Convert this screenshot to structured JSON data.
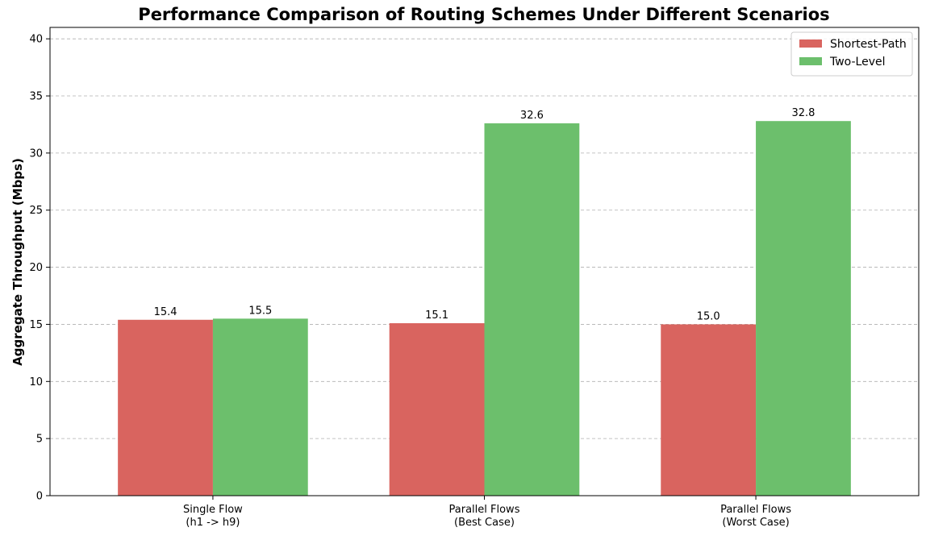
{
  "chart_data": {
    "type": "bar",
    "title": "Performance Comparison of Routing Schemes Under Different Scenarios",
    "xlabel": "",
    "ylabel": "Aggregate Throughput (Mbps)",
    "ylim": [
      0,
      41
    ],
    "yticks": [
      0,
      5,
      10,
      15,
      20,
      25,
      30,
      35,
      40
    ],
    "grid": "y-dashed",
    "legend_position": "top-right",
    "categories": [
      [
        "Single Flow",
        "(h1 -> h9)"
      ],
      [
        "Parallel Flows",
        "(Best Case)"
      ],
      [
        "Parallel Flows",
        "(Worst Case)"
      ]
    ],
    "series": [
      {
        "name": "Shortest-Path",
        "color": "#d9645f",
        "values": [
          15.4,
          15.1,
          15.0
        ],
        "labels": [
          "15.4",
          "15.1",
          "15.0"
        ]
      },
      {
        "name": "Two-Level",
        "color": "#6cbf6c",
        "values": [
          15.5,
          32.6,
          32.8
        ],
        "labels": [
          "15.5",
          "32.6",
          "32.8"
        ]
      }
    ]
  }
}
